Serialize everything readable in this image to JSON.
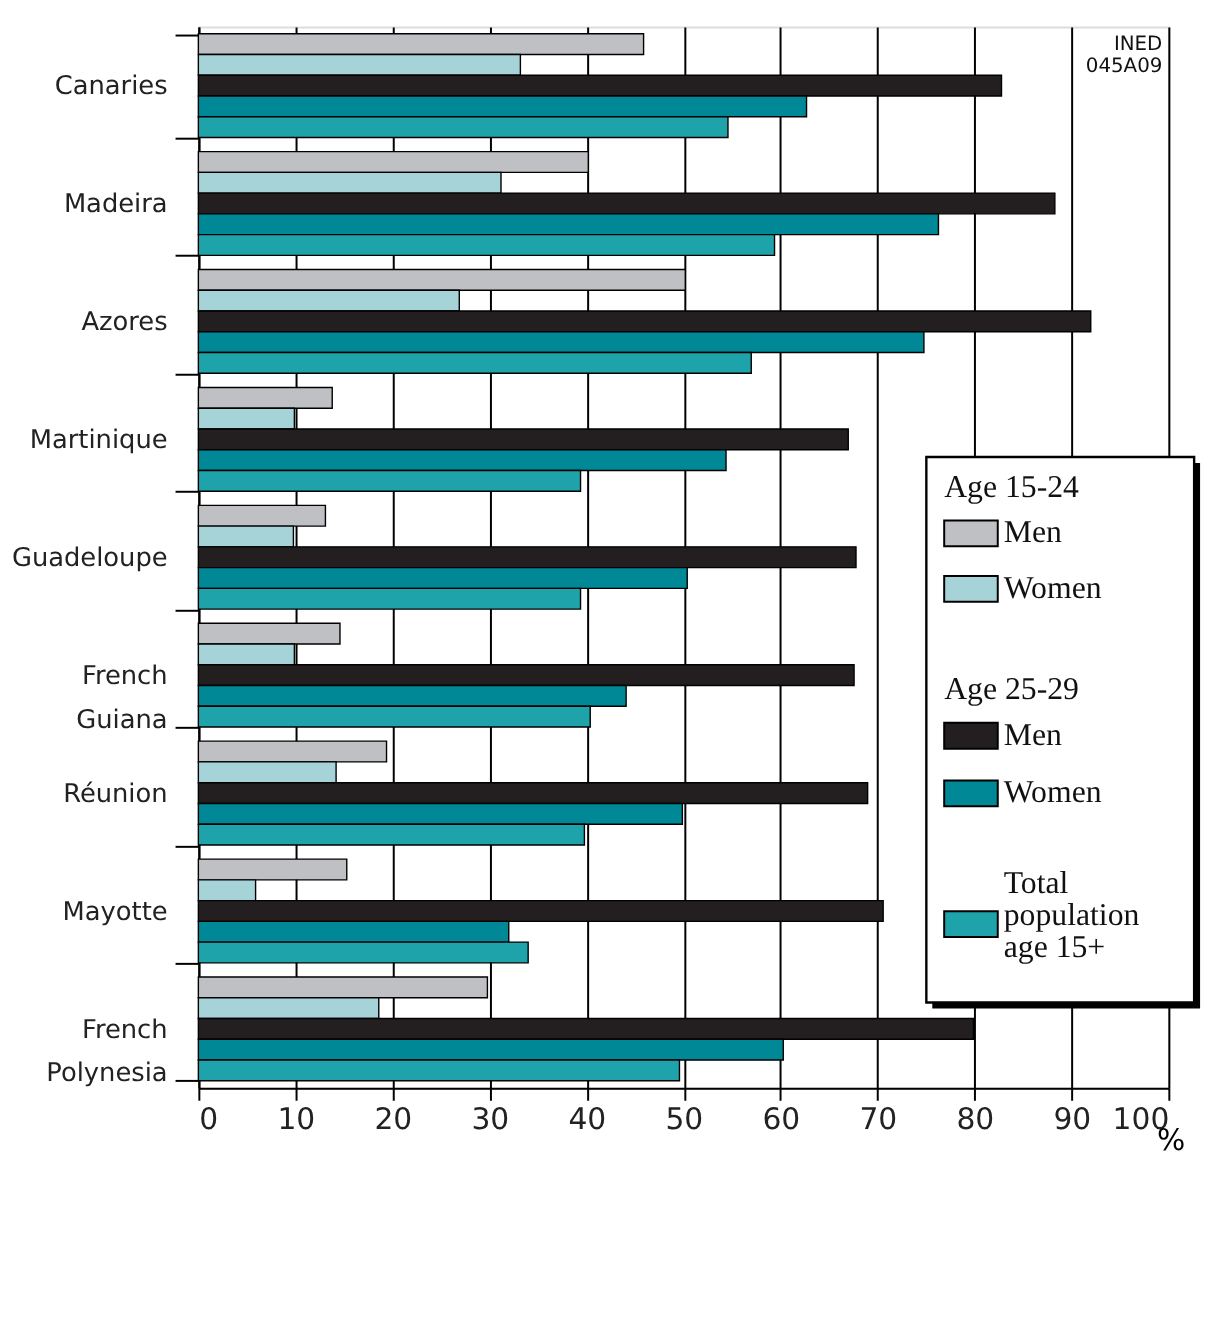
{
  "chart_data": {
    "type": "bar",
    "orientation": "horizontal",
    "categories": [
      "Canaries",
      "Madeira",
      "Azores",
      "Martinique",
      "Guadeloupe",
      "French Guiana",
      "Réunion",
      "Mayotte",
      "French Polynesia"
    ],
    "series": [
      {
        "name": "Men",
        "color": "#bfc0c4",
        "values": [
          45.9,
          40.2,
          50.2,
          13.8,
          13.1,
          14.6,
          19.4,
          15.3,
          29.8
        ]
      },
      {
        "name": "Women",
        "color": "#a6d3d8",
        "values": [
          33.2,
          31.2,
          26.9,
          9.9,
          9.8,
          9.9,
          14.2,
          5.9,
          18.6
        ]
      },
      {
        "name": "Men",
        "color": "#231f20",
        "values": [
          82.8,
          88.3,
          92.0,
          67.0,
          67.8,
          67.6,
          69.0,
          70.6,
          79.9
        ]
      },
      {
        "name": "Women",
        "color": "#008896",
        "values": [
          62.7,
          76.3,
          74.8,
          54.4,
          50.4,
          44.1,
          49.9,
          32.0,
          60.3
        ]
      },
      {
        "name": "Total population age 15+",
        "color": "#1fa3ab",
        "values": [
          54.6,
          59.4,
          57.0,
          39.4,
          39.4,
          40.4,
          39.8,
          34.0,
          49.6
        ]
      }
    ],
    "xlabel": "%",
    "xlim": [
      0,
      100
    ],
    "xticks": [
      0,
      10,
      20,
      30,
      40,
      50,
      60,
      70,
      80,
      90,
      100
    ],
    "grid": "x",
    "legend": "right",
    "annotations": [
      "Age 15-24",
      "Age 25-29",
      "INED 045A09"
    ]
  }
}
